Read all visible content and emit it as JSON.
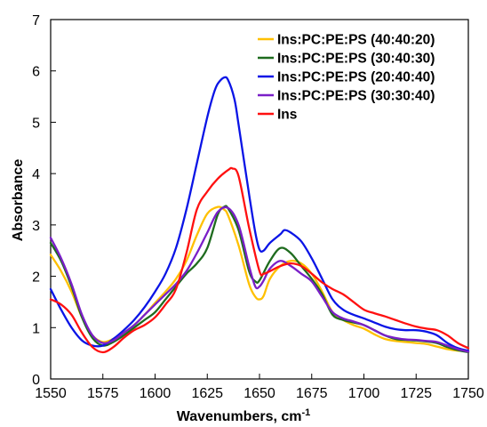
{
  "chart_data": {
    "type": "line",
    "xlabel": "Wavenumbers, cm",
    "xlabel_superscript": "-1",
    "ylabel": "Absorbance",
    "xlim": [
      1550,
      1750
    ],
    "ylim": [
      0,
      7
    ],
    "xticks": [
      "1550",
      "1575",
      "1600",
      "1625",
      "1650",
      "1675",
      "1700",
      "1725",
      "1750"
    ],
    "yticks": [
      "0",
      "1",
      "2",
      "3",
      "4",
      "5",
      "6",
      "7"
    ],
    "grid": false,
    "legend_position": "top-right",
    "series": [
      {
        "name": "Ins:PC:PE:PS (40:40:20)",
        "color": "#FFC000",
        "x": [
          1550,
          1555,
          1560,
          1565,
          1570,
          1575,
          1580,
          1585,
          1590,
          1595,
          1600,
          1605,
          1610,
          1615,
          1620,
          1625,
          1630,
          1633,
          1635,
          1640,
          1645,
          1648,
          1650,
          1652,
          1655,
          1660,
          1665,
          1670,
          1675,
          1680,
          1685,
          1690,
          1695,
          1700,
          1705,
          1710,
          1715,
          1720,
          1725,
          1730,
          1735,
          1740,
          1745,
          1750
        ],
        "y": [
          2.42,
          2.1,
          1.7,
          1.2,
          0.85,
          0.72,
          0.78,
          0.9,
          1.05,
          1.25,
          1.48,
          1.7,
          1.95,
          2.3,
          2.8,
          3.22,
          3.35,
          3.3,
          3.18,
          2.6,
          1.85,
          1.6,
          1.55,
          1.62,
          1.95,
          2.2,
          2.3,
          2.25,
          2.05,
          1.7,
          1.3,
          1.15,
          1.05,
          0.98,
          0.87,
          0.78,
          0.74,
          0.72,
          0.7,
          0.68,
          0.63,
          0.58,
          0.55,
          0.55
        ]
      },
      {
        "name": "Ins:PC:PE:PS (30:40:30)",
        "color": "#1E6B1E",
        "x": [
          1550,
          1555,
          1560,
          1565,
          1570,
          1575,
          1580,
          1585,
          1590,
          1595,
          1600,
          1605,
          1610,
          1615,
          1620,
          1625,
          1630,
          1633,
          1635,
          1640,
          1645,
          1648,
          1650,
          1655,
          1660,
          1665,
          1670,
          1675,
          1680,
          1685,
          1690,
          1695,
          1700,
          1705,
          1710,
          1715,
          1720,
          1725,
          1730,
          1735,
          1740,
          1745,
          1750
        ],
        "y": [
          2.65,
          2.3,
          1.8,
          1.2,
          0.8,
          0.65,
          0.72,
          0.85,
          1.0,
          1.15,
          1.3,
          1.55,
          1.8,
          2.05,
          2.25,
          2.55,
          3.2,
          3.35,
          3.32,
          2.9,
          2.1,
          1.9,
          1.92,
          2.3,
          2.55,
          2.45,
          2.2,
          1.95,
          1.65,
          1.25,
          1.15,
          1.1,
          1.05,
          0.95,
          0.85,
          0.78,
          0.76,
          0.75,
          0.73,
          0.7,
          0.62,
          0.56,
          0.52
        ]
      },
      {
        "name": "Ins:PC:PE:PS (20:40:40)",
        "color": "#0A14E6",
        "x": [
          1550,
          1555,
          1560,
          1565,
          1570,
          1575,
          1580,
          1585,
          1590,
          1595,
          1600,
          1605,
          1610,
          1615,
          1620,
          1625,
          1628,
          1630,
          1633,
          1635,
          1638,
          1640,
          1645,
          1648,
          1650,
          1652,
          1655,
          1660,
          1662,
          1665,
          1670,
          1675,
          1680,
          1685,
          1690,
          1695,
          1700,
          1705,
          1710,
          1715,
          1720,
          1725,
          1730,
          1735,
          1740,
          1745,
          1750
        ],
        "y": [
          1.75,
          1.35,
          1.0,
          0.75,
          0.65,
          0.65,
          0.78,
          0.95,
          1.15,
          1.4,
          1.7,
          2.05,
          2.55,
          3.3,
          4.2,
          5.1,
          5.55,
          5.75,
          5.87,
          5.82,
          5.45,
          4.95,
          3.6,
          2.85,
          2.52,
          2.5,
          2.65,
          2.82,
          2.9,
          2.85,
          2.68,
          2.35,
          1.95,
          1.55,
          1.35,
          1.25,
          1.18,
          1.1,
          1.02,
          0.97,
          0.95,
          0.95,
          0.92,
          0.85,
          0.7,
          0.6,
          0.55
        ]
      },
      {
        "name": "Ins:PC:PE:PS (30:30:40)",
        "color": "#7A1FC8",
        "x": [
          1550,
          1555,
          1560,
          1565,
          1570,
          1575,
          1580,
          1585,
          1590,
          1595,
          1600,
          1605,
          1610,
          1615,
          1620,
          1625,
          1630,
          1635,
          1640,
          1645,
          1648,
          1650,
          1652,
          1655,
          1660,
          1665,
          1670,
          1675,
          1680,
          1685,
          1690,
          1695,
          1700,
          1705,
          1710,
          1715,
          1720,
          1725,
          1730,
          1735,
          1740,
          1745,
          1750
        ],
        "y": [
          2.75,
          2.35,
          1.85,
          1.25,
          0.85,
          0.7,
          0.75,
          0.9,
          1.05,
          1.25,
          1.45,
          1.65,
          1.85,
          2.1,
          2.45,
          2.85,
          3.25,
          3.33,
          3.0,
          2.2,
          1.8,
          1.8,
          1.92,
          2.15,
          2.3,
          2.2,
          2.05,
          1.9,
          1.6,
          1.3,
          1.18,
          1.12,
          1.05,
          0.95,
          0.85,
          0.8,
          0.77,
          0.76,
          0.74,
          0.72,
          0.65,
          0.58,
          0.53
        ]
      },
      {
        "name": "Ins",
        "color": "#FF1010",
        "x": [
          1550,
          1555,
          1560,
          1565,
          1570,
          1575,
          1580,
          1585,
          1590,
          1595,
          1600,
          1605,
          1610,
          1615,
          1620,
          1625,
          1630,
          1635,
          1637,
          1640,
          1645,
          1650,
          1652,
          1655,
          1660,
          1665,
          1670,
          1675,
          1680,
          1685,
          1690,
          1695,
          1700,
          1705,
          1710,
          1715,
          1720,
          1725,
          1730,
          1735,
          1740,
          1745,
          1750
        ],
        "y": [
          1.55,
          1.45,
          1.25,
          0.9,
          0.62,
          0.52,
          0.62,
          0.8,
          0.95,
          1.05,
          1.2,
          1.45,
          1.75,
          2.45,
          3.3,
          3.65,
          3.9,
          4.07,
          4.1,
          3.95,
          2.95,
          2.1,
          2.05,
          2.1,
          2.2,
          2.25,
          2.2,
          2.05,
          1.88,
          1.75,
          1.65,
          1.5,
          1.35,
          1.28,
          1.22,
          1.15,
          1.08,
          1.02,
          0.98,
          0.95,
          0.85,
          0.7,
          0.6
        ]
      }
    ]
  }
}
